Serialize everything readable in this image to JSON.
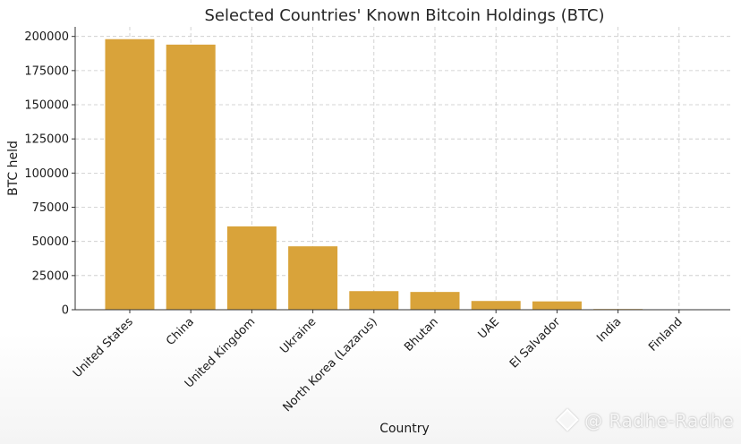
{
  "chart_data": {
    "type": "bar",
    "title": "Selected Countries' Known Bitcoin Holdings (BTC)",
    "xlabel": "Country",
    "ylabel": "BTC held",
    "categories": [
      "United States",
      "China",
      "United Kingdom",
      "Ukraine",
      "North Korea (Lazarus)",
      "Bhutan",
      "UAE",
      "El Salvador",
      "India",
      "Finland"
    ],
    "values": [
      198000,
      194000,
      61000,
      46400,
      13600,
      13000,
      6400,
      6100,
      500,
      90
    ],
    "ylim": [
      0,
      207000
    ],
    "yticks": [
      0,
      25000,
      50000,
      75000,
      100000,
      125000,
      150000,
      175000,
      200000
    ],
    "grid": true,
    "bar_color": "#d9a33a"
  },
  "watermark": {
    "text": "@ Radhe-Radhe",
    "icon": "diamond-logo-icon"
  }
}
